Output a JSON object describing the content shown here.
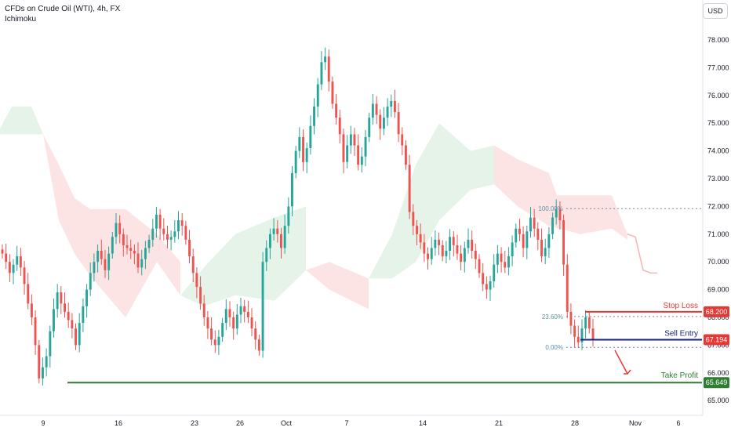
{
  "header": {
    "title": "CFDs on Crude Oil (WTI), 4h, FX",
    "indicator": "Ichimoku",
    "currency_button": "USD"
  },
  "chart_data": {
    "type": "candlestick",
    "title": "CFDs on Crude Oil (WTI), 4h, FX",
    "ylim": [
      64.7,
      79.0
    ],
    "y_ticks": [
      "65.000",
      "66.000",
      "67.000",
      "68.000",
      "69.000",
      "70.000",
      "71.000",
      "72.000",
      "73.000",
      "74.000",
      "75.000",
      "76.000",
      "77.000",
      "78.000"
    ],
    "x_ticks": [
      "9",
      "16",
      "23",
      "26",
      "Oct",
      "7",
      "14",
      "21",
      "28",
      "Nov",
      "6"
    ],
    "grid": false,
    "price_labels": [
      {
        "name": "Stop Loss",
        "value": "68.200",
        "color": "#e53935"
      },
      {
        "name": "Sell Entry",
        "value": "67.194",
        "color": "#e53935"
      },
      {
        "name": "Take Profit",
        "value": "65.649",
        "color": "#2e7d32"
      }
    ],
    "fib_levels": [
      {
        "label": "100.00%",
        "value": 71.92
      },
      {
        "label": "23.60%",
        "value": 68.03
      },
      {
        "label": "0.00%",
        "value": 66.92
      }
    ],
    "annotations": {
      "stop_loss": "Stop Loss",
      "sell_entry": "Sell Entry",
      "take_profit": "Take Profit"
    },
    "closes": [
      70.3,
      70.0,
      69.6,
      69.9,
      70.2,
      69.8,
      69.2,
      68.5,
      68.0,
      67.0,
      65.8,
      66.2,
      66.6,
      67.5,
      68.3,
      68.9,
      68.5,
      68.2,
      67.9,
      67.6,
      67.0,
      67.8,
      68.4,
      69.0,
      69.6,
      70.0,
      70.4,
      70.1,
      69.7,
      70.3,
      70.9,
      71.4,
      71.0,
      70.6,
      70.5,
      70.4,
      70.3,
      69.8,
      70.1,
      70.5,
      70.8,
      71.2,
      71.7,
      71.2,
      71.0,
      70.8,
      70.9,
      71.1,
      71.5,
      71.3,
      70.8,
      70.2,
      69.6,
      69.1,
      68.5,
      68.0,
      67.6,
      67.2,
      67.0,
      67.3,
      67.8,
      68.3,
      68.0,
      67.6,
      68.1,
      68.4,
      68.2,
      68.0,
      67.6,
      67.2,
      66.8,
      70.0,
      70.5,
      71.0,
      71.2,
      71.0,
      70.5,
      71.3,
      72.0,
      73.2,
      74.0,
      74.5,
      73.6,
      74.1,
      74.9,
      75.6,
      76.4,
      77.2,
      77.4,
      76.5,
      75.7,
      75.2,
      74.6,
      73.6,
      74.2,
      74.6,
      74.2,
      73.5,
      73.8,
      74.5,
      75.2,
      75.7,
      75.3,
      74.8,
      75.2,
      75.6,
      75.8,
      75.4,
      74.6,
      74.2,
      73.5,
      71.8,
      71.3,
      71.0,
      70.7,
      70.3,
      70.1,
      70.5,
      70.8,
      70.6,
      70.2,
      70.4,
      70.9,
      70.6,
      70.3,
      70.0,
      70.5,
      70.8,
      70.4,
      70.1,
      69.6,
      69.2,
      69.0,
      69.3,
      69.9,
      70.3,
      70.0,
      69.8,
      70.2,
      70.7,
      71.2,
      71.0,
      70.5,
      71.1,
      71.6,
      71.2,
      70.8,
      70.2,
      70.5,
      71.0,
      71.6,
      71.9,
      71.5,
      69.9,
      68.2,
      67.7,
      67.3,
      67.1,
      67.6,
      68.0,
      67.6,
      67.2
    ]
  }
}
